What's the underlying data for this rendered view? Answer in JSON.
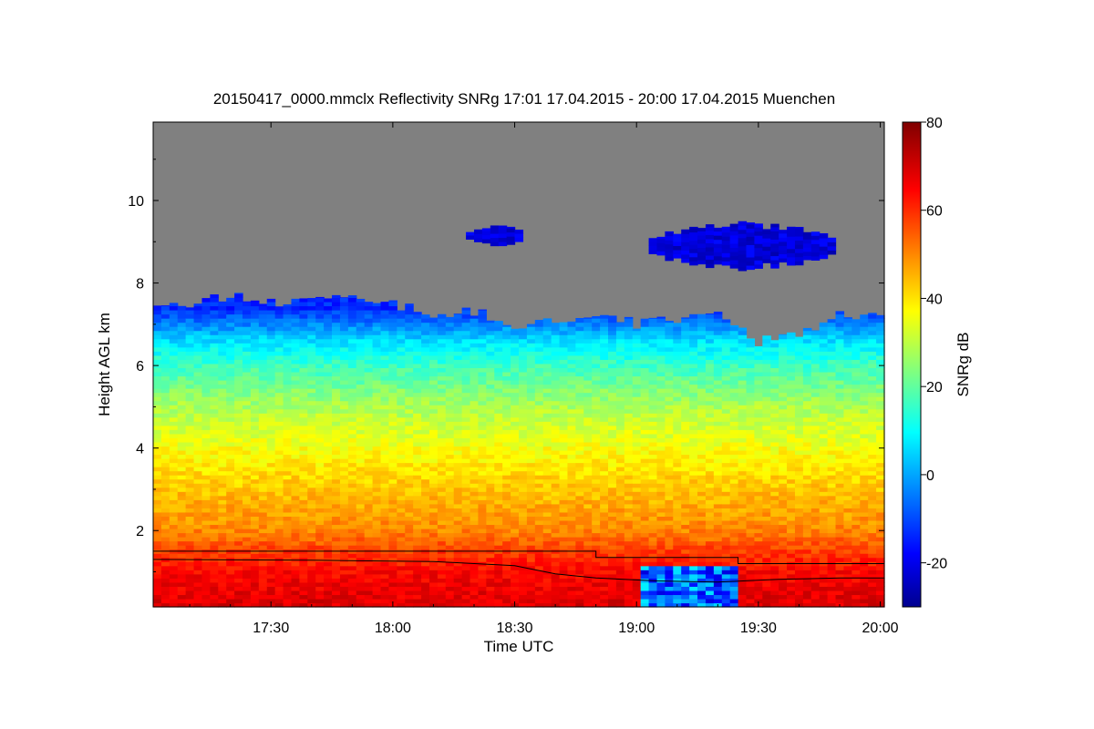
{
  "chart_data": {
    "type": "heatmap",
    "title": "20150417_0000.mmclx Reflectivity SNRg   17:01 17.04.2015 - 20:00 17.04.2015 Muenchen",
    "xlabel": "Time UTC",
    "ylabel": "Height AGL km",
    "x_tick_labels": [
      "17:30",
      "18:00",
      "18:30",
      "19:00",
      "19:30",
      "20:00"
    ],
    "x_tick_minutes": [
      1050,
      1080,
      1110,
      1140,
      1170,
      1200
    ],
    "xlim_minutes": [
      1021,
      1201
    ],
    "y_ticks": [
      2,
      4,
      6,
      8,
      10
    ],
    "ylim": [
      0.15,
      11.9
    ],
    "colorbar": {
      "label": "SNRg dB",
      "ticks": [
        -20,
        0,
        20,
        40,
        60,
        80
      ],
      "range": [
        -30,
        80
      ],
      "colormap": "jet"
    },
    "no_signal_color": "#808080",
    "echo_top_km": [
      [
        1021,
        7.4
      ],
      [
        1030,
        7.5
      ],
      [
        1040,
        7.7
      ],
      [
        1050,
        7.5
      ],
      [
        1060,
        7.6
      ],
      [
        1070,
        7.7
      ],
      [
        1080,
        7.5
      ],
      [
        1090,
        7.2
      ],
      [
        1100,
        7.3
      ],
      [
        1110,
        7.0
      ],
      [
        1120,
        7.1
      ],
      [
        1130,
        7.3
      ],
      [
        1140,
        7.0
      ],
      [
        1150,
        7.1
      ],
      [
        1160,
        7.2
      ],
      [
        1165,
        7.0
      ],
      [
        1170,
        6.5
      ],
      [
        1175,
        6.8
      ],
      [
        1180,
        6.8
      ],
      [
        1190,
        7.2
      ],
      [
        1201,
        7.3
      ]
    ],
    "upper_cloud_layers": [
      {
        "start_min": 1098,
        "end_min": 1112,
        "base_km": 8.9,
        "top_km": 9.4
      },
      {
        "start_min": 1143,
        "end_min": 1188,
        "base_km": 8.3,
        "top_km": 9.5
      }
    ],
    "snr_profile_db": [
      [
        0.2,
        70
      ],
      [
        1.0,
        66
      ],
      [
        1.5,
        60
      ],
      [
        2.0,
        52
      ],
      [
        3.0,
        45
      ],
      [
        4.0,
        38
      ],
      [
        5.0,
        30
      ],
      [
        6.0,
        18
      ],
      [
        6.6,
        8
      ],
      [
        7.0,
        -2
      ],
      [
        7.4,
        -12
      ]
    ],
    "clutter_region": {
      "start_min": 1140,
      "end_min": 1165,
      "base_km": 0.15,
      "top_km": 1.1,
      "snr_db": -5
    },
    "lines": [
      {
        "points": [
          [
            1021,
            1.5
          ],
          [
            1130,
            1.5
          ],
          [
            1130,
            1.35
          ],
          [
            1165,
            1.35
          ],
          [
            1165,
            1.2
          ],
          [
            1201,
            1.2
          ]
        ]
      },
      {
        "points": [
          [
            1021,
            1.3
          ],
          [
            1060,
            1.28
          ],
          [
            1090,
            1.25
          ],
          [
            1110,
            1.15
          ],
          [
            1120,
            0.95
          ],
          [
            1130,
            0.85
          ],
          [
            1145,
            0.78
          ],
          [
            1160,
            0.75
          ],
          [
            1175,
            0.82
          ],
          [
            1190,
            0.85
          ],
          [
            1201,
            0.85
          ]
        ]
      }
    ]
  }
}
